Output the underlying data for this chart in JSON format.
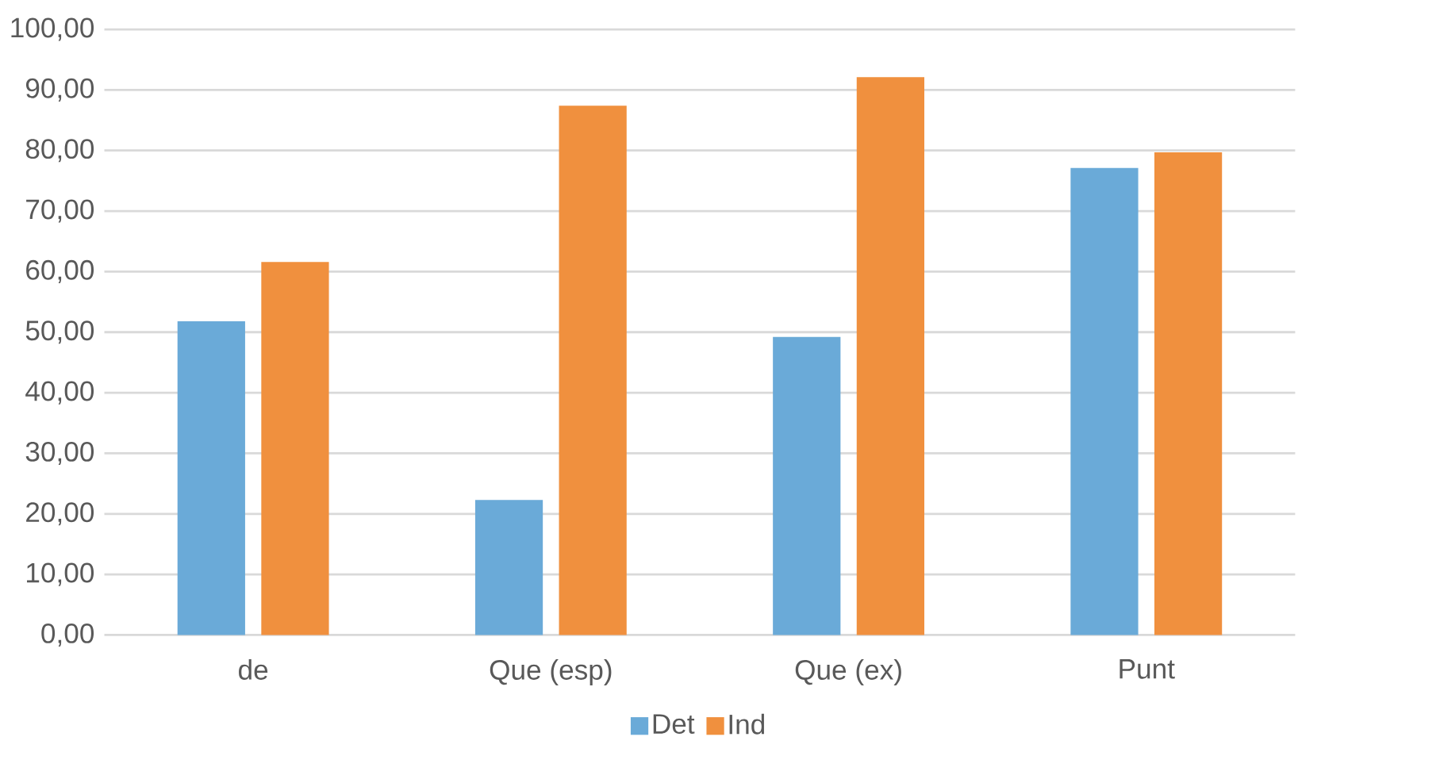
{
  "chart_data": {
    "type": "bar",
    "categories": [
      "de",
      "Que (esp)",
      "Que (ex)",
      "Punt"
    ],
    "series": [
      {
        "name": "Det",
        "color": "#6aaad8",
        "values": [
          51.8,
          22.3,
          49.2,
          77.1
        ]
      },
      {
        "name": "Ind",
        "color": "#f0903e",
        "values": [
          61.6,
          87.4,
          92.1,
          79.7
        ]
      }
    ],
    "ylim": [
      0,
      100
    ],
    "yticks": [
      {
        "value": 0,
        "label": "0,00"
      },
      {
        "value": 10,
        "label": "10,00"
      },
      {
        "value": 20,
        "label": "20,00"
      },
      {
        "value": 30,
        "label": "30,00"
      },
      {
        "value": 40,
        "label": "40,00"
      },
      {
        "value": 50,
        "label": "50,00"
      },
      {
        "value": 60,
        "label": "60,00"
      },
      {
        "value": 70,
        "label": "70,00"
      },
      {
        "value": 80,
        "label": "80,00"
      },
      {
        "value": 90,
        "label": "90,00"
      },
      {
        "value": 100,
        "label": "100,00"
      }
    ],
    "grid": "y",
    "legend": "bottom"
  }
}
